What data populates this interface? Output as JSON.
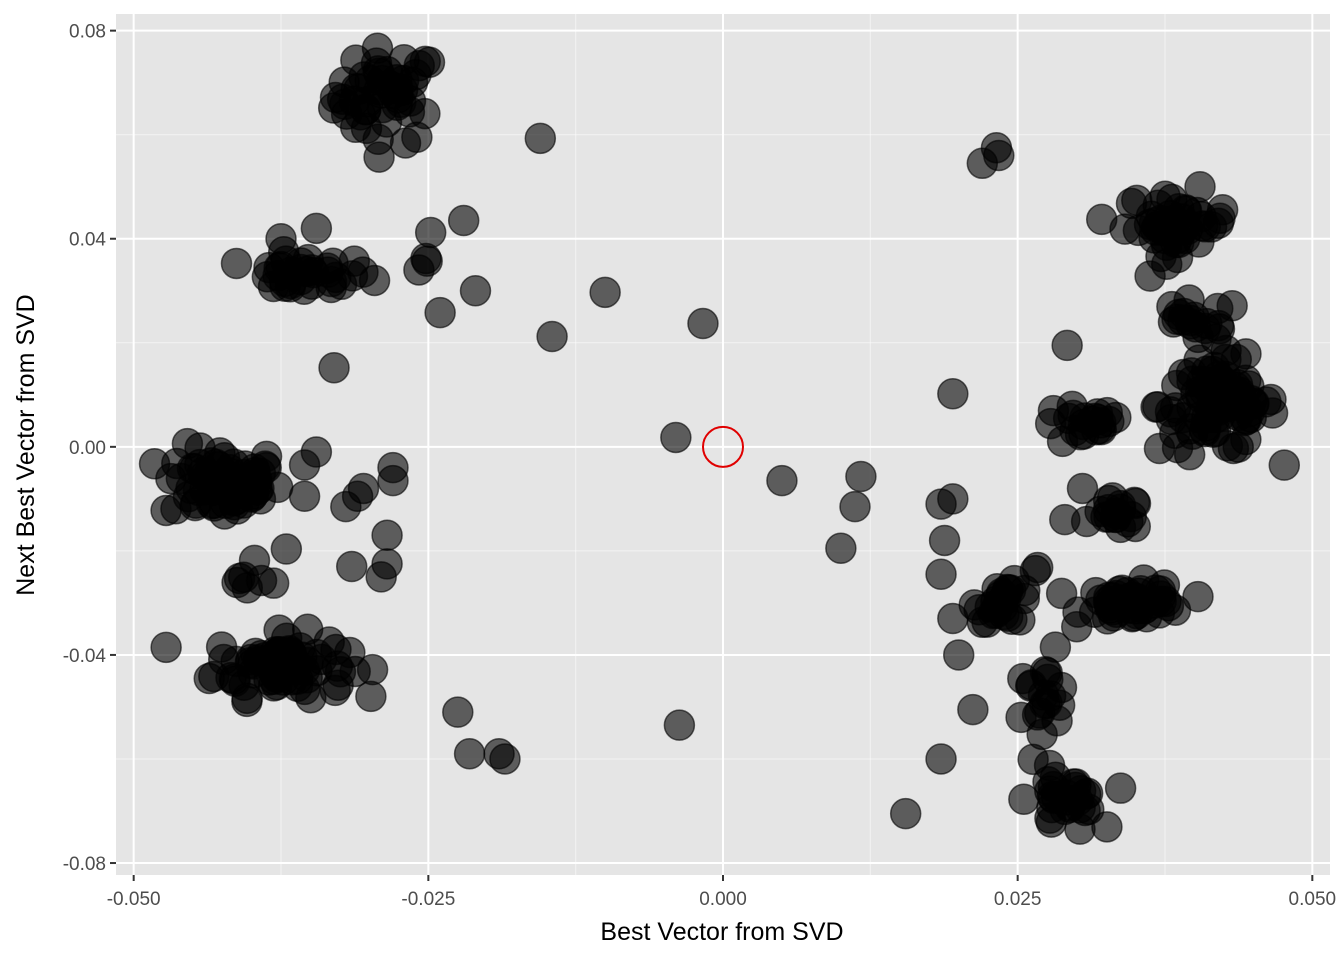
{
  "chart_data": {
    "type": "scatter",
    "title": "",
    "xlabel": "Best Vector from SVD",
    "ylabel": "Next Best Vector from SVD",
    "xlim": [
      -0.0515,
      0.0515
    ],
    "ylim": [
      -0.0823,
      0.0832
    ],
    "xticks": [
      -0.05,
      -0.025,
      0.0,
      0.025,
      0.05
    ],
    "xtick_labels": [
      "-0.050",
      "-0.025",
      "0.000",
      "0.025",
      "0.050"
    ],
    "yticks": [
      -0.08,
      -0.04,
      0.0,
      0.04,
      0.08
    ],
    "ytick_labels": [
      "-0.08",
      "-0.04",
      "0.00",
      "0.04",
      "0.08"
    ],
    "grid": true,
    "colors": {
      "panel_background": "#e5e5e5",
      "grid_major": "#ffffff",
      "point_fill": "#000000",
      "point_stroke": "#000000",
      "highlight": "#e00000"
    },
    "highlight_point": {
      "x": 0.0,
      "y": 0.0
    },
    "clusters": [
      {
        "x": -0.0285,
        "y": 0.0675,
        "spread_x": 0.0022,
        "spread_y": 0.0045,
        "n": 50
      },
      {
        "x": -0.0355,
        "y": 0.033,
        "spread_x": 0.0028,
        "spread_y": 0.0018,
        "n": 34
      },
      {
        "x": -0.0425,
        "y": -0.007,
        "spread_x": 0.0025,
        "spread_y": 0.0035,
        "n": 70
      },
      {
        "x": -0.0375,
        "y": -0.042,
        "spread_x": 0.0028,
        "spread_y": 0.003,
        "n": 80
      },
      {
        "x": -0.0395,
        "y": -0.024,
        "spread_x": 0.0012,
        "spread_y": 0.0025,
        "n": 8
      },
      {
        "x": 0.0385,
        "y": 0.043,
        "spread_x": 0.0022,
        "spread_y": 0.003,
        "n": 45
      },
      {
        "x": 0.042,
        "y": 0.008,
        "spread_x": 0.0025,
        "spread_y": 0.0045,
        "n": 85
      },
      {
        "x": 0.04,
        "y": 0.024,
        "spread_x": 0.002,
        "spread_y": 0.002,
        "n": 18
      },
      {
        "x": 0.0305,
        "y": 0.004,
        "spread_x": 0.0018,
        "spread_y": 0.002,
        "n": 22
      },
      {
        "x": 0.0335,
        "y": -0.013,
        "spread_x": 0.001,
        "spread_y": 0.0015,
        "n": 18
      },
      {
        "x": 0.035,
        "y": -0.03,
        "spread_x": 0.0022,
        "spread_y": 0.0018,
        "n": 50
      },
      {
        "x": 0.024,
        "y": -0.03,
        "spread_x": 0.0012,
        "spread_y": 0.0018,
        "n": 25
      },
      {
        "x": 0.027,
        "y": -0.048,
        "spread_x": 0.0012,
        "spread_y": 0.003,
        "n": 18
      },
      {
        "x": 0.029,
        "y": -0.068,
        "spread_x": 0.0015,
        "spread_y": 0.003,
        "n": 30
      }
    ],
    "points": [
      [
        -0.0155,
        0.0593
      ],
      [
        -0.022,
        0.0435
      ],
      [
        -0.0248,
        0.0412
      ],
      [
        -0.0252,
        0.0362
      ],
      [
        -0.0251,
        0.0357
      ],
      [
        -0.0258,
        0.034
      ],
      [
        -0.021,
        0.03
      ],
      [
        -0.024,
        0.0258
      ],
      [
        -0.01,
        0.0297
      ],
      [
        -0.0145,
        0.0212
      ],
      [
        -0.0017,
        0.0237
      ],
      [
        -0.004,
        0.0018
      ],
      [
        0.005,
        -0.0065
      ],
      [
        0.0117,
        -0.0057
      ],
      [
        0.0112,
        -0.0115
      ],
      [
        0.01,
        -0.0195
      ],
      [
        0.0155,
        -0.0705
      ],
      [
        -0.0225,
        -0.051
      ],
      [
        -0.0215,
        -0.059
      ],
      [
        -0.019,
        -0.059
      ],
      [
        -0.0037,
        -0.0535
      ],
      [
        0.0195,
        0.0102
      ],
      [
        0.022,
        0.0545
      ],
      [
        0.0232,
        0.0575
      ],
      [
        0.0234,
        0.056
      ],
      [
        -0.033,
        0.0152
      ],
      [
        -0.0375,
        0.04
      ],
      [
        -0.0345,
        0.042
      ],
      [
        -0.0345,
        -0.001
      ],
      [
        -0.0355,
        -0.0035
      ],
      [
        -0.0355,
        -0.0095
      ],
      [
        -0.032,
        -0.0115
      ],
      [
        -0.031,
        -0.0095
      ],
      [
        -0.0305,
        -0.008
      ],
      [
        -0.028,
        -0.004
      ],
      [
        -0.028,
        -0.0065
      ],
      [
        -0.0285,
        -0.017
      ],
      [
        -0.0285,
        -0.0225
      ],
      [
        -0.029,
        -0.025
      ],
      [
        -0.0315,
        -0.023
      ],
      [
        -0.0185,
        -0.06
      ],
      [
        0.0185,
        -0.011
      ],
      [
        0.0195,
        -0.01
      ],
      [
        0.0188,
        -0.018
      ],
      [
        0.0185,
        -0.0245
      ],
      [
        0.0195,
        -0.033
      ],
      [
        0.02,
        -0.04
      ],
      [
        0.0212,
        -0.0505
      ],
      [
        0.0185,
        -0.06
      ],
      [
        0.0292,
        0.0195
      ],
      [
        0.029,
        -0.014
      ],
      [
        0.0305,
        -0.008
      ],
      [
        0.0282,
        -0.0385
      ],
      [
        0.0265,
        -0.0238
      ],
      [
        0.0267,
        -0.0232
      ]
    ]
  }
}
